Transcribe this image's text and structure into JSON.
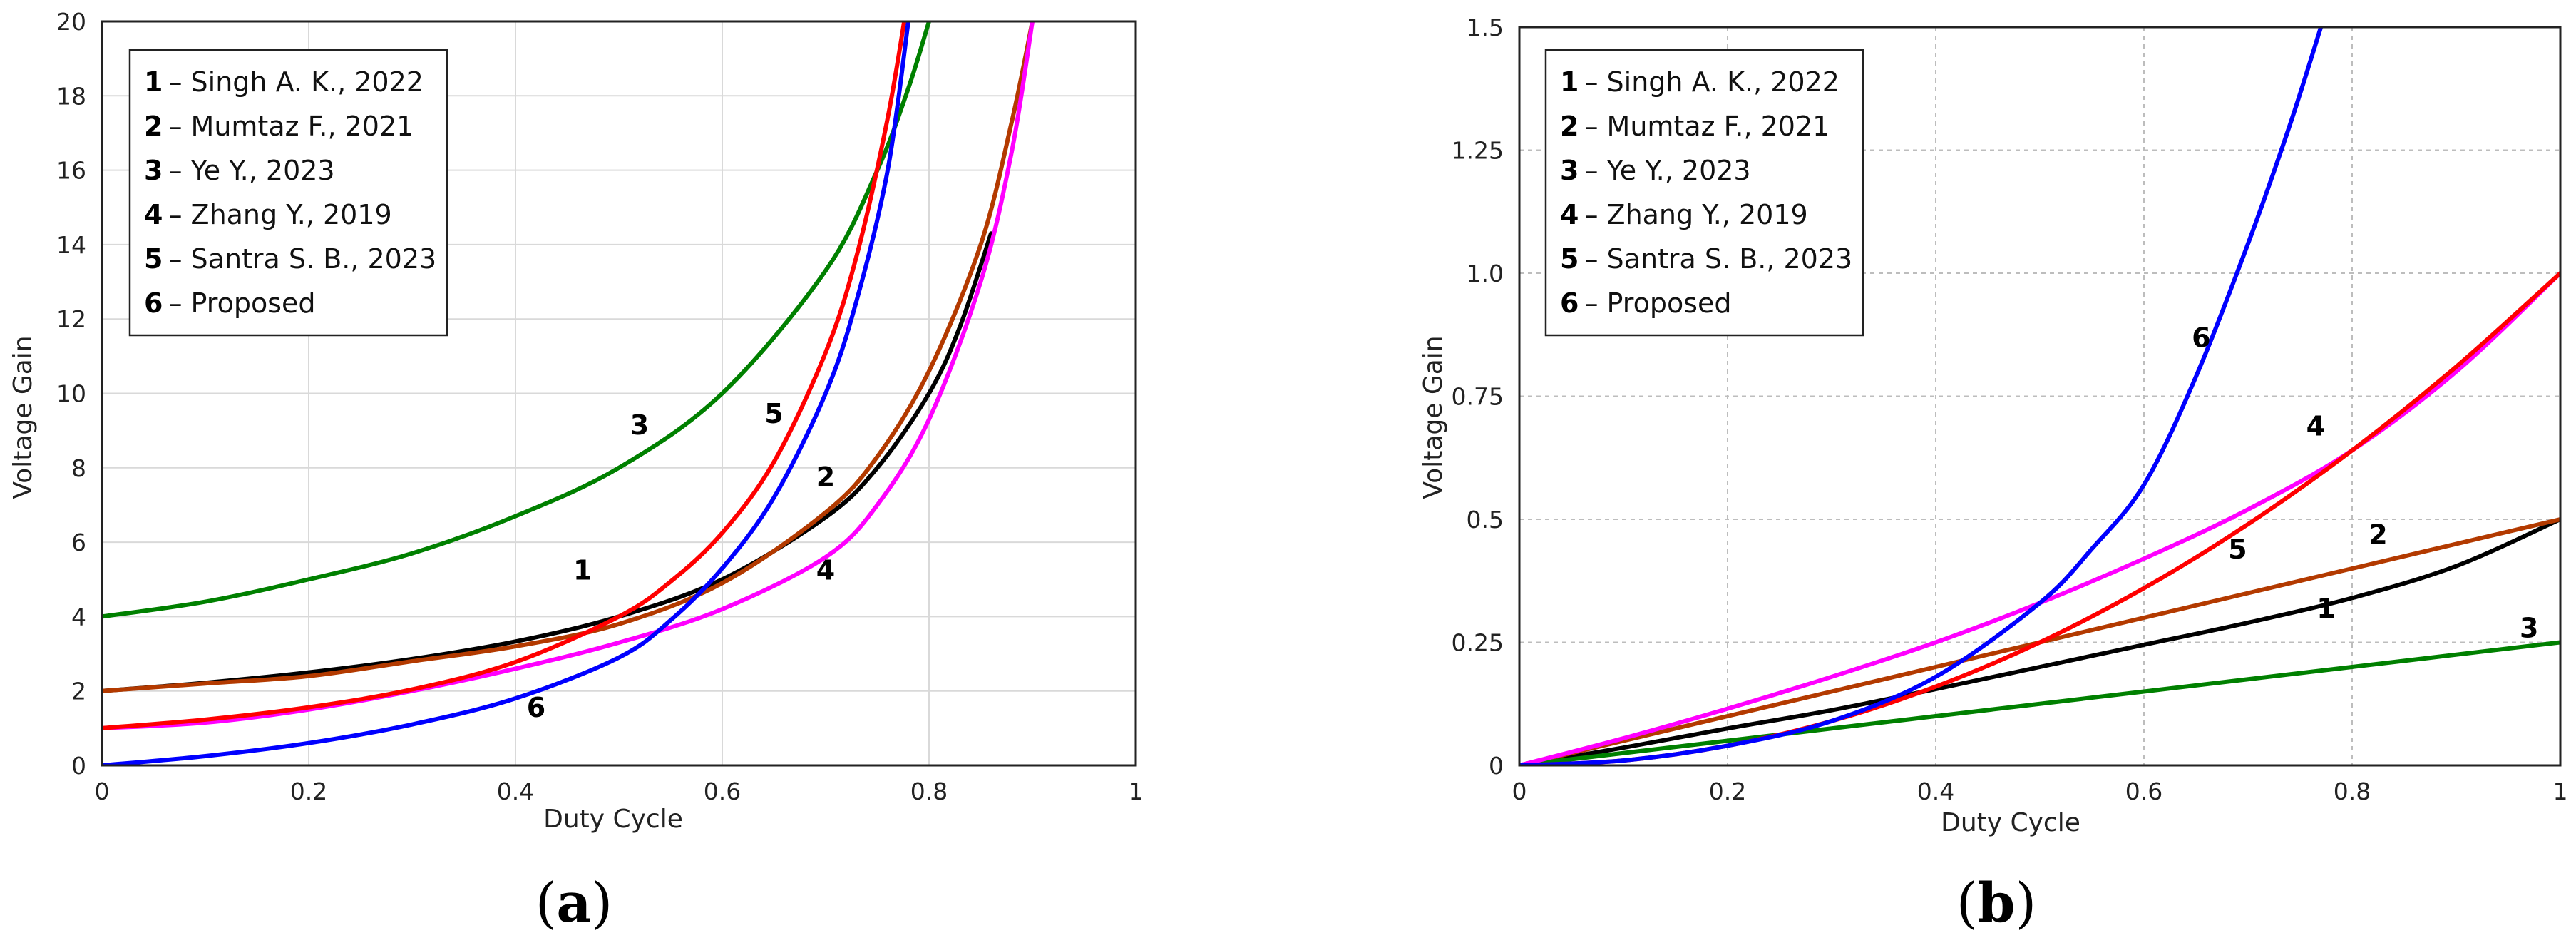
{
  "chart_data": [
    {
      "id": "a",
      "type": "line",
      "panel_label": "a",
      "xlabel": "Duty Cycle",
      "ylabel": "Voltage Gain",
      "xlim": [
        0,
        1
      ],
      "ylim": [
        0,
        20
      ],
      "xticks": [
        0,
        0.2,
        0.4,
        0.6,
        0.8,
        1
      ],
      "xtick_labels": [
        "0",
        "0.2",
        "0.4",
        "0.6",
        "0.8",
        "1"
      ],
      "yticks": [
        0,
        2,
        4,
        6,
        8,
        10,
        12,
        14,
        16,
        18,
        20
      ],
      "ytick_labels": [
        "0",
        "2",
        "4",
        "6",
        "8",
        "10",
        "12",
        "14",
        "16",
        "18",
        "20"
      ],
      "grid": true,
      "legend_position": "top-left",
      "legend": [
        {
          "num": "1",
          "text": "– Singh A. K., 2022"
        },
        {
          "num": "2",
          "text": "– Mumtaz F., 2021"
        },
        {
          "num": "3",
          "text": "– Ye Y., 2023"
        },
        {
          "num": "4",
          "text": "– Zhang Y., 2019"
        },
        {
          "num": "5",
          "text": "– Santra S. B., 2023"
        },
        {
          "num": "6",
          "text": "– Proposed"
        }
      ],
      "series": [
        {
          "name": "1",
          "color": "#000000",
          "x": [
            0,
            0.1,
            0.2,
            0.3,
            0.4,
            0.5,
            0.6,
            0.7,
            0.75,
            0.8,
            0.83,
            0.86
          ],
          "y": [
            2,
            2.22,
            2.5,
            2.86,
            3.33,
            4.0,
            5.0,
            6.67,
            8.0,
            10.0,
            11.8,
            14.3
          ]
        },
        {
          "name": "2",
          "color": "#b33a00",
          "x": [
            0,
            0.1,
            0.2,
            0.3,
            0.4,
            0.5,
            0.6,
            0.7,
            0.75,
            0.8,
            0.85,
            0.88,
            0.9
          ],
          "y": [
            2,
            2.2,
            2.4,
            2.8,
            3.2,
            3.8,
            4.9,
            6.8,
            8.3,
            10.6,
            14.0,
            17.3,
            20
          ]
        },
        {
          "name": "3",
          "color": "#008000",
          "x": [
            0,
            0.1,
            0.2,
            0.3,
            0.4,
            0.5,
            0.6,
            0.7,
            0.75,
            0.78,
            0.8
          ],
          "y": [
            4,
            4.4,
            5.0,
            5.7,
            6.7,
            8.0,
            10.0,
            13.3,
            16.0,
            18.2,
            20
          ]
        },
        {
          "name": "4",
          "color": "#ff00ff",
          "x": [
            0,
            0.1,
            0.2,
            0.3,
            0.4,
            0.5,
            0.6,
            0.7,
            0.75,
            0.8,
            0.85,
            0.88,
            0.9
          ],
          "y": [
            1,
            1.15,
            1.5,
            2.0,
            2.6,
            3.3,
            4.2,
            5.6,
            7.0,
            9.3,
            13.0,
            16.5,
            20
          ]
        },
        {
          "name": "5",
          "color": "#ff0000",
          "x": [
            0,
            0.1,
            0.2,
            0.3,
            0.4,
            0.5,
            0.55,
            0.6,
            0.65,
            0.7,
            0.73,
            0.76,
            0.78
          ],
          "y": [
            1,
            1.23,
            1.56,
            2.04,
            2.78,
            4.0,
            4.94,
            6.25,
            8.16,
            11.1,
            13.7,
            17.4,
            20.7
          ]
        },
        {
          "name": "6",
          "color": "#0000ff",
          "x": [
            0,
            0.1,
            0.2,
            0.3,
            0.4,
            0.5,
            0.55,
            0.6,
            0.65,
            0.7,
            0.73,
            0.76,
            0.78
          ],
          "y": [
            0,
            0.25,
            0.6,
            1.1,
            1.8,
            2.9,
            3.9,
            5.3,
            7.2,
            10.0,
            12.5,
            16.0,
            20
          ]
        }
      ],
      "curve_labels": [
        {
          "text": "1",
          "x": 0.465,
          "y": 5.0
        },
        {
          "text": "2",
          "x": 0.7,
          "y": 7.5
        },
        {
          "text": "3",
          "x": 0.52,
          "y": 8.9
        },
        {
          "text": "4",
          "x": 0.7,
          "y": 5.0
        },
        {
          "text": "5",
          "x": 0.65,
          "y": 9.2
        },
        {
          "text": "6",
          "x": 0.42,
          "y": 1.3
        }
      ]
    },
    {
      "id": "b",
      "type": "line",
      "panel_label": "b",
      "xlabel": "Duty Cycle",
      "ylabel": "Voltage Gain",
      "xlim": [
        0,
        1
      ],
      "ylim": [
        0,
        1.5
      ],
      "xticks": [
        0,
        0.2,
        0.4,
        0.6,
        0.8,
        1
      ],
      "xtick_labels": [
        "0",
        "0.2",
        "0.4",
        "0.6",
        "0.8",
        "1"
      ],
      "yticks": [
        0,
        0.25,
        0.5,
        0.75,
        1.0,
        1.25,
        1.5
      ],
      "ytick_labels": [
        "0",
        "0.25",
        "0.5",
        "0.75",
        "1.0",
        "1.25",
        "1.5"
      ],
      "grid": true,
      "legend_position": "top-left",
      "legend": [
        {
          "num": "1",
          "text": "– Singh A. K., 2022"
        },
        {
          "num": "2",
          "text": "– Mumtaz F., 2021"
        },
        {
          "num": "3",
          "text": "– Ye Y., 2023"
        },
        {
          "num": "4",
          "text": "– Zhang Y., 2019"
        },
        {
          "num": "5",
          "text": "– Santra S. B., 2023"
        },
        {
          "num": "6",
          "text": "– Proposed"
        }
      ],
      "series": [
        {
          "name": "1",
          "color": "#000000",
          "x": [
            0,
            0.1,
            0.2,
            0.3,
            0.4,
            0.5,
            0.6,
            0.7,
            0.8,
            0.9,
            1.0
          ],
          "y": [
            0,
            0.036,
            0.075,
            0.112,
            0.155,
            0.2,
            0.245,
            0.29,
            0.34,
            0.405,
            0.5
          ]
        },
        {
          "name": "2",
          "color": "#b33a00",
          "x": [
            0,
            0.2,
            0.4,
            0.6,
            0.8,
            1.0
          ],
          "y": [
            0,
            0.1,
            0.2,
            0.3,
            0.4,
            0.5
          ]
        },
        {
          "name": "3",
          "color": "#008000",
          "x": [
            0,
            0.2,
            0.4,
            0.6,
            0.8,
            1.0
          ],
          "y": [
            0,
            0.05,
            0.1,
            0.15,
            0.2,
            0.25
          ]
        },
        {
          "name": "4",
          "color": "#ff00ff",
          "x": [
            0,
            0.1,
            0.2,
            0.3,
            0.4,
            0.5,
            0.6,
            0.7,
            0.8,
            0.9,
            1.0
          ],
          "y": [
            0,
            0.055,
            0.115,
            0.18,
            0.25,
            0.33,
            0.42,
            0.52,
            0.64,
            0.8,
            1.0
          ]
        },
        {
          "name": "5",
          "color": "#ff0000",
          "x": [
            0,
            0.1,
            0.2,
            0.3,
            0.4,
            0.5,
            0.6,
            0.7,
            0.8,
            0.9,
            1.0
          ],
          "y": [
            0,
            0.01,
            0.04,
            0.09,
            0.16,
            0.25,
            0.36,
            0.49,
            0.64,
            0.81,
            1.0
          ]
        },
        {
          "name": "6",
          "color": "#0000ff",
          "x": [
            0,
            0.1,
            0.2,
            0.3,
            0.4,
            0.5,
            0.55,
            0.6,
            0.65,
            0.7,
            0.74,
            0.77
          ],
          "y": [
            0,
            0.01,
            0.04,
            0.09,
            0.18,
            0.33,
            0.44,
            0.57,
            0.79,
            1.06,
            1.3,
            1.5
          ]
        }
      ],
      "curve_labels": [
        {
          "text": "1",
          "x": 0.775,
          "y": 0.3
        },
        {
          "text": "2",
          "x": 0.825,
          "y": 0.45
        },
        {
          "text": "3",
          "x": 0.97,
          "y": 0.26
        },
        {
          "text": "4",
          "x": 0.765,
          "y": 0.67
        },
        {
          "text": "5",
          "x": 0.69,
          "y": 0.42
        },
        {
          "text": "6",
          "x": 0.655,
          "y": 0.85
        }
      ]
    }
  ]
}
